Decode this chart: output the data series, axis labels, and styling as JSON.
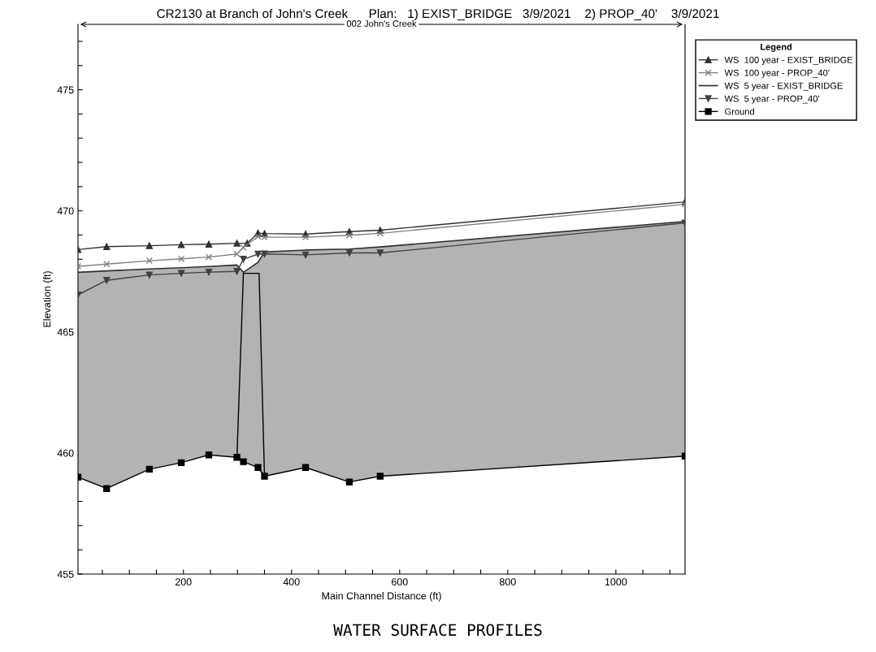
{
  "chart_data": {
    "type": "line",
    "title": "CR2130 at Branch of John's Creek      Plan:   1) EXIST_BRIDGE   3/9/2021    2) PROP_40'    3/9/2021",
    "xlabel": "Main Channel Distance (ft)",
    "ylabel": "Elevation (ft)",
    "legend_title": "Legend",
    "annotations": [
      "002 John's Creek",
      "WATER SURFACE PROFILES"
    ],
    "xlim": [
      5,
      1128
    ],
    "ylim": [
      455,
      477.7
    ],
    "xticks": [
      {
        "value": 50,
        "label": null
      },
      {
        "value": 100,
        "label": null
      },
      {
        "value": 150,
        "label": null
      },
      200,
      {
        "value": 250,
        "label": null
      },
      {
        "value": 300,
        "label": null
      },
      {
        "value": 350,
        "label": null
      },
      400,
      {
        "value": 450,
        "label": null
      },
      {
        "value": 500,
        "label": null
      },
      {
        "value": 550,
        "label": null
      },
      600,
      {
        "value": 650,
        "label": null
      },
      {
        "value": 700,
        "label": null
      },
      {
        "value": 750,
        "label": null
      },
      800,
      {
        "value": 850,
        "label": null
      },
      {
        "value": 900,
        "label": null
      },
      {
        "value": 950,
        "label": null
      },
      1000,
      {
        "value": 1050,
        "label": null
      },
      {
        "value": 1100,
        "label": null
      }
    ],
    "yticks": [
      455,
      {
        "value": 456,
        "label": null
      },
      {
        "value": 457,
        "label": null
      },
      {
        "value": 458,
        "label": null
      },
      {
        "value": 459,
        "label": null
      },
      460,
      {
        "value": 461,
        "label": null
      },
      {
        "value": 462,
        "label": null
      },
      {
        "value": 463,
        "label": null
      },
      {
        "value": 464,
        "label": null
      },
      465,
      {
        "value": 466,
        "label": null
      },
      {
        "value": 467,
        "label": null
      },
      {
        "value": 468,
        "label": null
      },
      {
        "value": 469,
        "label": null
      },
      470,
      {
        "value": 471,
        "label": null
      },
      {
        "value": 472,
        "label": null
      },
      {
        "value": 473,
        "label": null
      },
      {
        "value": 474,
        "label": null
      },
      475,
      {
        "value": 476,
        "label": null
      },
      {
        "value": 477,
        "label": null
      }
    ],
    "grid": false,
    "legend": "top right",
    "line_style": "solid",
    "series": [
      {
        "name": "WS  100 year - EXIST_BRIDGE",
        "type": "line",
        "color": "#303030",
        "marker": "triangle",
        "x": [
          5,
          58,
          137,
          196,
          247,
          299,
          318,
          338,
          350,
          426,
          507,
          564,
          1128
        ],
        "values": [
          468.4,
          468.52,
          468.56,
          468.6,
          468.62,
          468.66,
          468.66,
          469.08,
          469.06,
          469.04,
          469.14,
          469.2,
          470.37
        ]
      },
      {
        "name": "WS  100 year - PROP_40'",
        "type": "line",
        "color": "#808080",
        "marker": "cross",
        "x": [
          5,
          58,
          137,
          196,
          247,
          299,
          311,
          338,
          350,
          426,
          507,
          564,
          1128
        ],
        "values": [
          467.71,
          467.8,
          467.94,
          468.02,
          468.09,
          468.22,
          468.49,
          468.94,
          468.91,
          468.91,
          468.99,
          469.07,
          470.27
        ]
      },
      {
        "name": "WS  5 year - EXIST_BRIDGE",
        "type": "area",
        "color": "#b3b3b3",
        "marker": "none",
        "x": [
          5,
          58,
          137,
          196,
          247,
          299,
          311,
          338,
          350,
          426,
          507,
          564,
          1128
        ],
        "values": [
          467.46,
          467.52,
          467.6,
          467.65,
          467.7,
          467.76,
          467.46,
          467.87,
          468.3,
          468.38,
          468.42,
          468.51,
          469.56
        ]
      },
      {
        "name": "WS  5 year - PROP_40'",
        "type": "line",
        "color": "#404040",
        "marker": "triangle_down",
        "x": [
          5,
          58,
          137,
          196,
          247,
          299,
          311,
          338,
          350,
          426,
          507,
          564,
          1128
        ],
        "values": [
          466.53,
          467.13,
          467.35,
          467.42,
          467.47,
          467.5,
          468.0,
          468.21,
          468.22,
          468.18,
          468.26,
          468.26,
          469.5
        ]
      },
      {
        "name": "Ground",
        "type": "line",
        "color": "#000000",
        "marker": "square",
        "x": [
          5,
          58,
          137,
          196,
          247,
          299,
          311,
          338,
          350,
          426,
          507,
          564,
          1128
        ],
        "values": [
          459.0,
          458.53,
          459.33,
          459.6,
          459.92,
          459.82,
          459.64,
          459.4,
          459.04,
          459.4,
          458.8,
          459.04,
          459.87
        ]
      },
      {
        "type": "line",
        "color": "#000000",
        "marker": "none",
        "x": [
          299,
          311,
          340,
          350
        ],
        "values": [
          459.82,
          467.42,
          467.42,
          459.04
        ]
      }
    ]
  }
}
